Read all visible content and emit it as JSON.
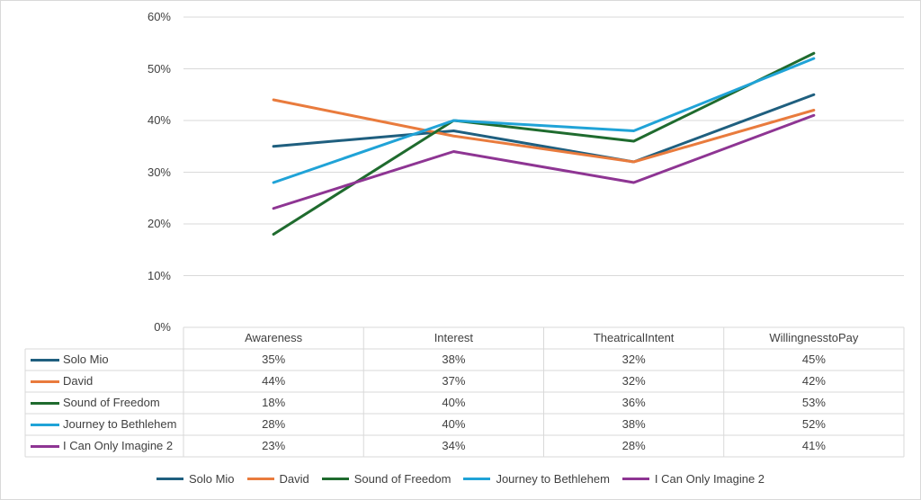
{
  "chart_data": {
    "type": "line",
    "title": "",
    "xlabel": "",
    "ylabel": "",
    "categories": [
      "Awareness",
      "Interest",
      "TheatricalIntent",
      "WillingnesstoPay"
    ],
    "ylim": [
      0,
      60
    ],
    "yticks": [
      "0%",
      "10%",
      "20%",
      "30%",
      "40%",
      "50%",
      "60%"
    ],
    "grid": true,
    "legend_position": "bottom",
    "data_table": true,
    "series": [
      {
        "name": "Solo Mio",
        "color": "#1f5f7f",
        "values": [
          35,
          38,
          32,
          45
        ],
        "labels": [
          "35%",
          "38%",
          "32%",
          "45%"
        ]
      },
      {
        "name": "David",
        "color": "#e97b3d",
        "values": [
          44,
          37,
          32,
          42
        ],
        "labels": [
          "44%",
          "37%",
          "32%",
          "42%"
        ]
      },
      {
        "name": "Sound of Freedom",
        "color": "#1f6b2e",
        "values": [
          18,
          40,
          36,
          53
        ],
        "labels": [
          "18%",
          "40%",
          "36%",
          "53%"
        ]
      },
      {
        "name": "Journey to Bethlehem",
        "color": "#20a3d7",
        "values": [
          28,
          40,
          38,
          52
        ],
        "labels": [
          "28%",
          "40%",
          "38%",
          "52%"
        ]
      },
      {
        "name": "I Can Only Imagine 2",
        "color": "#8e3593",
        "values": [
          23,
          34,
          28,
          41
        ],
        "labels": [
          "23%",
          "34%",
          "28%",
          "41%"
        ]
      }
    ]
  }
}
